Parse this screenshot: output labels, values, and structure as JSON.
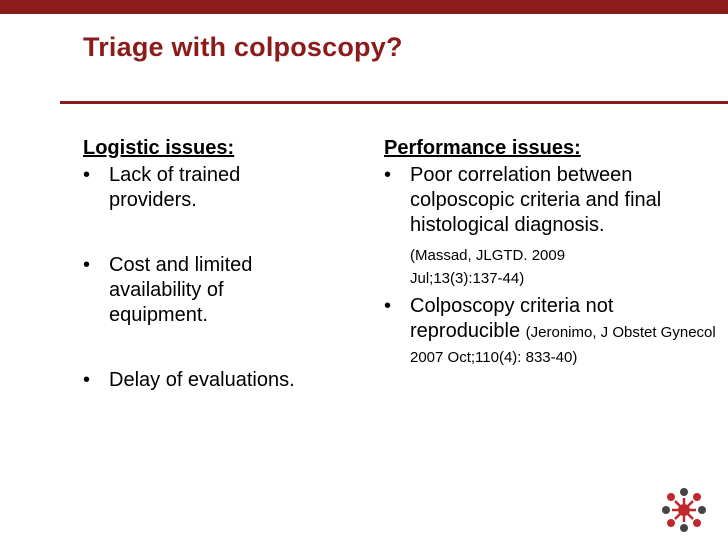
{
  "slide": {
    "title": "Triage with colposcopy?",
    "left_column": {
      "heading": "Logistic issues:",
      "items": [
        {
          "bullet": "•",
          "text": "Lack of trained providers."
        },
        {
          "bullet": "•",
          "text": "Cost and limited availability of equipment."
        },
        {
          "bullet": "•",
          "text": "Delay of evaluations."
        }
      ]
    },
    "right_column": {
      "heading": "Performance issues:",
      "items": [
        {
          "bullet": "•",
          "text": "Poor correlation between colposcopic criteria and final histological diagnosis.",
          "reference": "(Massad, JLGTD. 2009 Jul;13(3):137-44)"
        },
        {
          "bullet": "•",
          "text": "Colposcopy criteria not reproducible",
          "reference": "(Jeronimo, J Obstet Gynecol 2007 Oct;110(4): 833-40)"
        }
      ]
    }
  },
  "colors": {
    "accent": "#8c1c1c",
    "logo_red": "#c0282d",
    "logo_dark": "#444444"
  },
  "icons": {
    "logo": "organization-logo-icon"
  }
}
